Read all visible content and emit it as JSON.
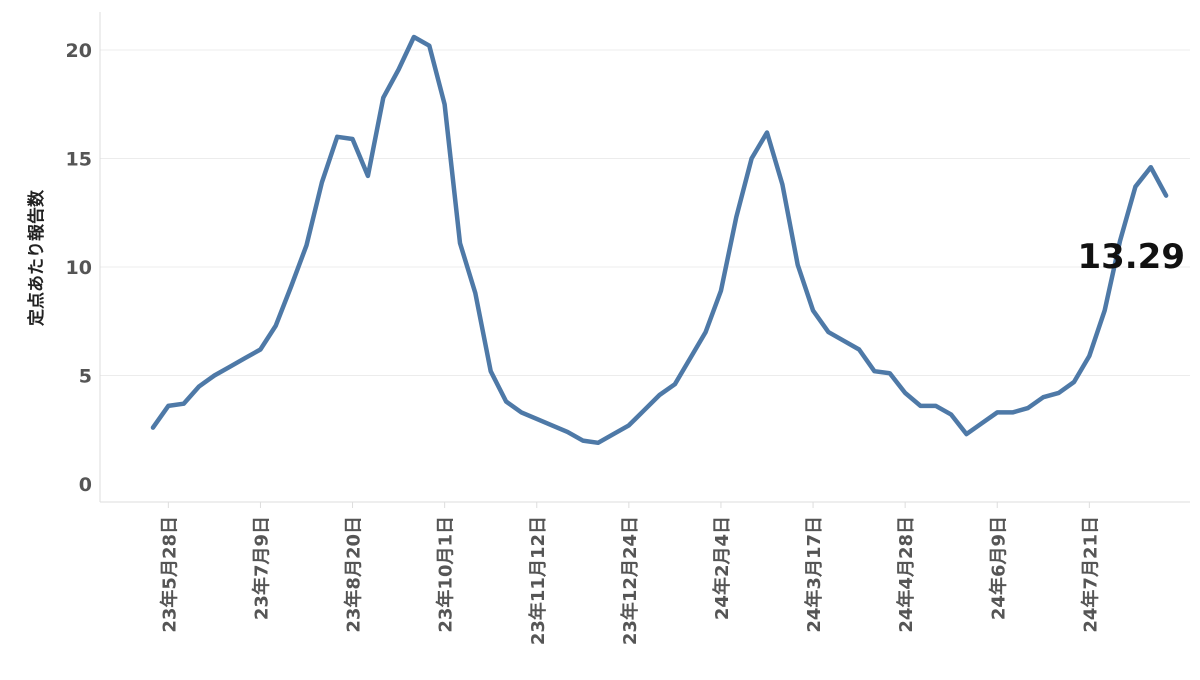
{
  "chart_data": {
    "type": "line",
    "ylabel": "定点あたり報告数",
    "ylim": [
      0,
      21
    ],
    "yticks": [
      0,
      5,
      10,
      15,
      20
    ],
    "grid": true,
    "x_tick_labels": [
      "23年5月28日",
      "23年7月9日",
      "23年8月20日",
      "23年10月1日",
      "23年11月12日",
      "23年12月24日",
      "24年2月4日",
      "24年3月17日",
      "24年4月28日",
      "24年6月9日",
      "24年7月21日"
    ],
    "x_tick_week_index": [
      1,
      7,
      13,
      19,
      25,
      31,
      37,
      43,
      49,
      55,
      61
    ],
    "series": [
      {
        "color": "#4e79a7",
        "values": [
          2.6,
          3.6,
          3.7,
          4.5,
          5.0,
          5.4,
          5.8,
          6.2,
          7.3,
          9.1,
          11.0,
          13.9,
          16.0,
          15.9,
          14.2,
          17.8,
          19.1,
          20.6,
          20.2,
          17.5,
          11.1,
          8.8,
          5.2,
          3.8,
          3.3,
          3.0,
          2.7,
          2.4,
          2.0,
          1.9,
          2.3,
          2.7,
          3.4,
          4.1,
          4.6,
          5.8,
          7.0,
          8.9,
          12.3,
          15.0,
          16.2,
          13.8,
          10.1,
          8.0,
          7.0,
          6.6,
          6.2,
          5.2,
          5.1,
          4.2,
          3.6,
          3.6,
          3.2,
          2.3,
          2.8,
          3.3,
          3.3,
          3.5,
          4.0,
          4.2,
          4.7,
          5.9,
          8.0,
          11.2,
          13.7,
          14.6,
          13.29
        ]
      }
    ],
    "last_value_label": "13.29"
  }
}
